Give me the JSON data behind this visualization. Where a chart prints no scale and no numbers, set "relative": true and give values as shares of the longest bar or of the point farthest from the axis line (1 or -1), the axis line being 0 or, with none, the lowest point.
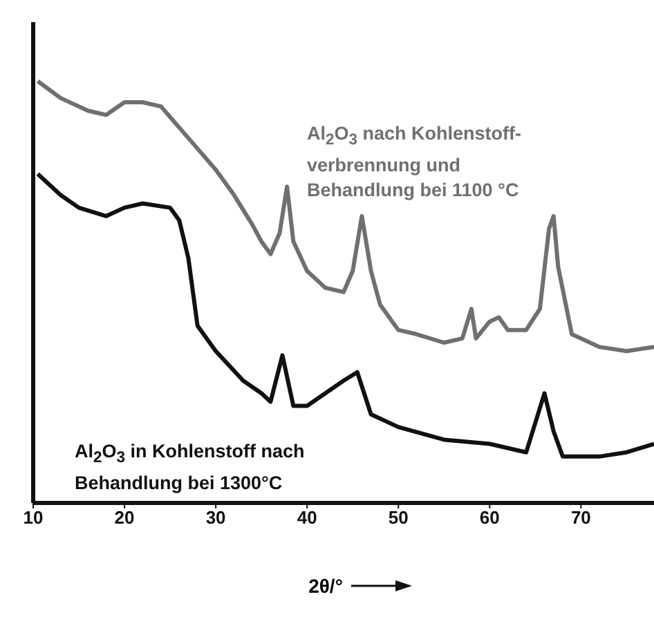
{
  "chart_data": {
    "type": "line",
    "relative": true,
    "xlabel": "2θ/°",
    "xlim": [
      10,
      78
    ],
    "xticks": [
      10,
      20,
      30,
      40,
      50,
      60,
      70
    ],
    "tick_labels": "x",
    "grid": false,
    "legend": false,
    "marker": "none",
    "line_style": "solid",
    "series": [
      {
        "name": "Al$_{2}$O$_{3}$ nach Kohlenstoff-verbrennung und Behandlung bei 1100 °C",
        "color": "#707070",
        "x": [
          10.5,
          13,
          16,
          18,
          20,
          22,
          24,
          26,
          28,
          30,
          32,
          34,
          35,
          36,
          37,
          37.8,
          38.5,
          40,
          42,
          44,
          45,
          46,
          47,
          48,
          50,
          52,
          55,
          57,
          58,
          58.5,
          60,
          61,
          62,
          64,
          65.5,
          66.5,
          67,
          67.5,
          69,
          72,
          75,
          78
        ],
        "values": [
          1.0,
          0.96,
          0.93,
          0.92,
          0.95,
          0.95,
          0.94,
          0.89,
          0.84,
          0.79,
          0.73,
          0.66,
          0.62,
          0.59,
          0.64,
          0.75,
          0.62,
          0.55,
          0.51,
          0.5,
          0.55,
          0.68,
          0.55,
          0.47,
          0.41,
          0.4,
          0.38,
          0.39,
          0.46,
          0.39,
          0.43,
          0.44,
          0.41,
          0.41,
          0.46,
          0.65,
          0.68,
          0.56,
          0.4,
          0.37,
          0.36,
          0.37
        ]
      },
      {
        "name": "Al$_{2}$O$_{3}$ in Kohlenstoff nach Behandlung bei 1300°C",
        "color": "#111111",
        "x": [
          10.5,
          13,
          15,
          18,
          20,
          22,
          25,
          26,
          27,
          28,
          30,
          33,
          35,
          36,
          37.3,
          38.5,
          40,
          42,
          44,
          45.5,
          47,
          50,
          55,
          60,
          64,
          66,
          67,
          68,
          72,
          75,
          78
        ],
        "values": [
          0.78,
          0.73,
          0.7,
          0.68,
          0.7,
          0.71,
          0.7,
          0.67,
          0.58,
          0.42,
          0.36,
          0.29,
          0.26,
          0.24,
          0.35,
          0.23,
          0.23,
          0.26,
          0.29,
          0.31,
          0.21,
          0.18,
          0.15,
          0.14,
          0.12,
          0.26,
          0.17,
          0.11,
          0.11,
          0.12,
          0.14
        ]
      }
    ]
  }
}
